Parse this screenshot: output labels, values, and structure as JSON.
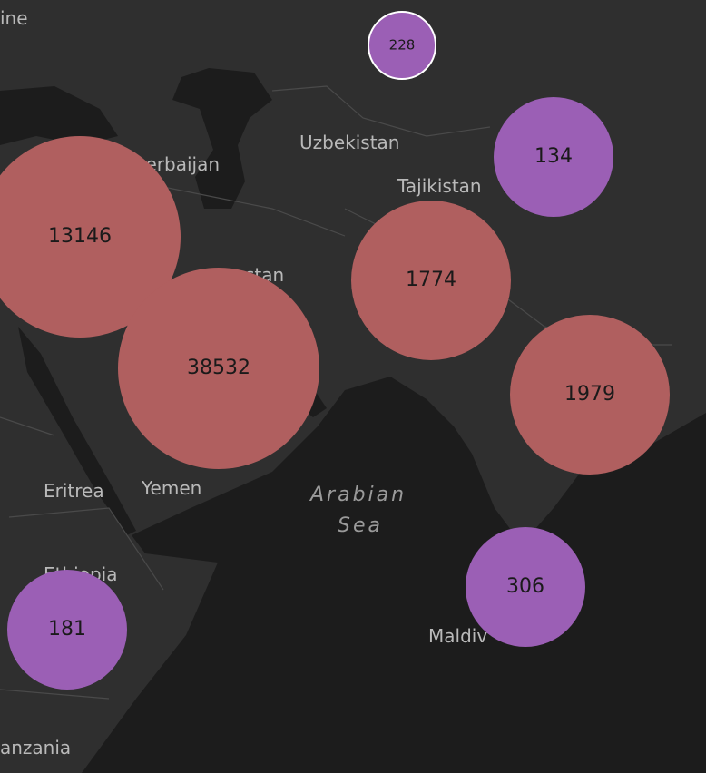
{
  "map": {
    "places": [
      "ine",
      "Uzbekistan",
      "zerbaijan",
      "Tajikistan",
      "stan",
      "Eritrea",
      "Yemen",
      "Ethiopia",
      "Maldiv",
      "anzania"
    ],
    "sea_label": [
      "Arabian",
      "Sea"
    ],
    "clusters": [
      {
        "count": 228,
        "color": "#9b5fb5"
      },
      {
        "count": 134,
        "color": "#9b5fb5"
      },
      {
        "count": 13146,
        "color": "#b05f5f"
      },
      {
        "count": 38532,
        "color": "#b05f5f"
      },
      {
        "count": 1774,
        "color": "#b05f5f"
      },
      {
        "count": 1979,
        "color": "#b05f5f"
      },
      {
        "count": 306,
        "color": "#9b5fb5"
      },
      {
        "count": 181,
        "color": "#9b5fb5"
      }
    ]
  }
}
